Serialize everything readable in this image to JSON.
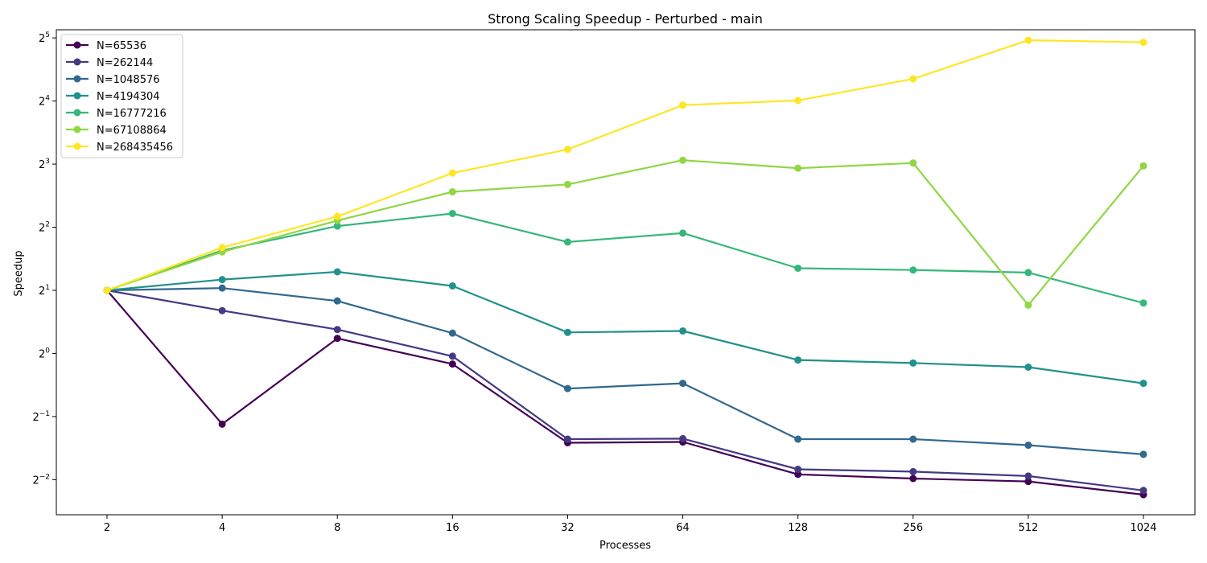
{
  "chart_data": {
    "type": "line",
    "title": "Strong Scaling Speedup - Perturbed - main",
    "xlabel": "Processes",
    "ylabel": "Speedup",
    "x": [
      "2",
      "4",
      "8",
      "16",
      "32",
      "64",
      "128",
      "256",
      "512",
      "1024"
    ],
    "y_scale": "log2",
    "ylim": [
      0.17,
      35
    ],
    "y_ticks": [
      {
        "base": "2",
        "exp": "−2",
        "value": 0.25
      },
      {
        "base": "2",
        "exp": "−1",
        "value": 0.5
      },
      {
        "base": "2",
        "exp": "0",
        "value": 1
      },
      {
        "base": "2",
        "exp": "1",
        "value": 2
      },
      {
        "base": "2",
        "exp": "2",
        "value": 4
      },
      {
        "base": "2",
        "exp": "3",
        "value": 8
      },
      {
        "base": "2",
        "exp": "4",
        "value": 16
      },
      {
        "base": "2",
        "exp": "5",
        "value": 32
      }
    ],
    "grid": false,
    "legend_position": "top-left",
    "series": [
      {
        "name": "N=65536",
        "color": "#440154",
        "values": [
          2.0,
          0.46,
          1.18,
          0.89,
          0.375,
          0.378,
          0.265,
          0.253,
          0.245,
          0.212
        ]
      },
      {
        "name": "N=262144",
        "color": "#443983",
        "values": [
          2.0,
          1.6,
          1.3,
          0.97,
          0.39,
          0.392,
          0.28,
          0.273,
          0.26,
          0.222
        ]
      },
      {
        "name": "N=1048576",
        "color": "#31688e",
        "values": [
          2.0,
          2.05,
          1.78,
          1.25,
          0.68,
          0.72,
          0.39,
          0.39,
          0.365,
          0.33
        ]
      },
      {
        "name": "N=4194304",
        "color": "#21918c",
        "values": [
          2.0,
          2.25,
          2.45,
          2.1,
          1.26,
          1.28,
          0.93,
          0.9,
          0.86,
          0.72
        ]
      },
      {
        "name": "N=16777216",
        "color": "#35b779",
        "values": [
          2.0,
          3.1,
          4.05,
          4.65,
          3.4,
          3.75,
          2.55,
          2.5,
          2.43,
          1.74
        ]
      },
      {
        "name": "N=67108864",
        "color": "#90d743",
        "values": [
          2.0,
          3.05,
          4.3,
          5.9,
          6.4,
          8.35,
          7.65,
          8.1,
          1.7,
          7.85
        ]
      },
      {
        "name": "N=268435456",
        "color": "#fde725",
        "values": [
          2.0,
          3.2,
          4.5,
          7.25,
          9.4,
          15.3,
          16.1,
          20.4,
          31.2,
          30.5
        ]
      }
    ]
  }
}
